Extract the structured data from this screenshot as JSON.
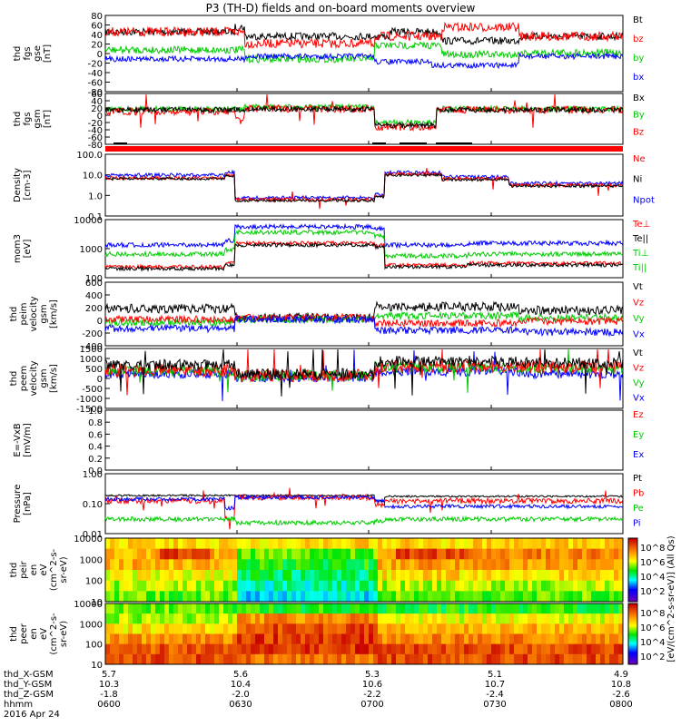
{
  "title": "P3 (TH-D) fields and on-board moments overview",
  "date_label": "2016 Apr 24",
  "colors": {
    "black": "#000000",
    "red": "#ff0000",
    "green": "#00cc00",
    "blue": "#0000ff",
    "bar_red": "#ff0000"
  },
  "chart_data": [
    {
      "type": "line",
      "id": "fgs_gse",
      "ylabel": [
        "thd",
        "fgs",
        "gse",
        "[nT]"
      ],
      "ylim": [
        -80,
        90
      ],
      "ticks": [
        "80",
        "60",
        "40",
        "20",
        "0",
        "-20",
        "-40",
        "-60",
        "-80"
      ],
      "series": [
        {
          "name": "Bt",
          "color": "black"
        },
        {
          "name": "bz",
          "color": "red"
        },
        {
          "name": "by",
          "color": "green"
        },
        {
          "name": "bx",
          "color": "blue"
        }
      ]
    },
    {
      "type": "line",
      "id": "fgs_gsm",
      "ylabel": [
        "thd",
        "fgs",
        "gsm",
        "[nT]"
      ],
      "ylim": [
        -80,
        60
      ],
      "ticks": [
        "60",
        "40",
        "20",
        "0",
        "-20",
        "-40",
        "-60",
        "-80"
      ],
      "series": [
        {
          "name": "Bx",
          "color": "black"
        },
        {
          "name": "By",
          "color": "green"
        },
        {
          "name": "Bz",
          "color": "red"
        }
      ]
    },
    {
      "type": "line",
      "id": "density",
      "ylabel": [
        "Density",
        "[cm-3]"
      ],
      "log": true,
      "ylim": [
        0.1,
        100
      ],
      "ticks": [
        "100.0",
        "10.0",
        "1.0",
        "0.1"
      ],
      "series": [
        {
          "name": "Ne",
          "color": "red"
        },
        {
          "name": "Ni",
          "color": "black"
        },
        {
          "name": "Npot",
          "color": "blue"
        }
      ]
    },
    {
      "type": "line",
      "id": "temp",
      "ylabel": [
        "mom3",
        "[eV]"
      ],
      "log": true,
      "ylim": [
        40,
        10000
      ],
      "ticks": [
        "10000",
        "1000",
        "100"
      ],
      "series": [
        {
          "name": "Te⊥",
          "color": "red"
        },
        {
          "name": "Te||",
          "color": "black"
        },
        {
          "name": "Ti⊥",
          "color": "green"
        },
        {
          "name": "Ti||",
          "color": "green"
        }
      ]
    },
    {
      "type": "line",
      "id": "peim",
      "ylabel": [
        "thd",
        "peim",
        "velocity",
        "gsm",
        "[km/s]"
      ],
      "ylim": [
        -400,
        600
      ],
      "ticks": [
        "600",
        "400",
        "200",
        "0",
        "-200",
        "-400"
      ],
      "series": [
        {
          "name": "Vt",
          "color": "black"
        },
        {
          "name": "Vz",
          "color": "red"
        },
        {
          "name": "Vy",
          "color": "green"
        },
        {
          "name": "Vx",
          "color": "blue"
        }
      ]
    },
    {
      "type": "line",
      "id": "peem",
      "ylabel": [
        "thd",
        "peem",
        "velocity",
        "gsm",
        "[km/s]"
      ],
      "ylim": [
        -1500,
        1500
      ],
      "ticks": [
        "1500",
        "1000",
        "500",
        "0",
        "-500",
        "-1000",
        "-1500"
      ],
      "series": [
        {
          "name": "Vt",
          "color": "black"
        },
        {
          "name": "Vz",
          "color": "red"
        },
        {
          "name": "Vy",
          "color": "green"
        },
        {
          "name": "Vx",
          "color": "blue"
        }
      ]
    },
    {
      "type": "line",
      "id": "efield",
      "ylabel": [
        "E=-VxB",
        "[mV/m]"
      ],
      "ylim": [
        0,
        1
      ],
      "ticks": [
        "1.0",
        "0.8",
        "0.6",
        "0.4",
        "0.2",
        "0.0"
      ],
      "series": [
        {
          "name": "Ez",
          "color": "red"
        },
        {
          "name": "Ey",
          "color": "green"
        },
        {
          "name": "Ex",
          "color": "blue"
        }
      ]
    },
    {
      "type": "line",
      "id": "pressure",
      "ylabel": [
        "Pressure",
        "[nPa]"
      ],
      "log": true,
      "ylim": [
        0.01,
        2
      ],
      "ticks": [
        "1.00",
        "0.10",
        "0.01"
      ],
      "series": [
        {
          "name": "Pt",
          "color": "black"
        },
        {
          "name": "Pb",
          "color": "red"
        },
        {
          "name": "Pe",
          "color": "green"
        },
        {
          "name": "Pi",
          "color": "blue"
        }
      ]
    },
    {
      "type": "heatmap",
      "id": "peir",
      "ylabel": [
        "thd",
        "peir",
        "en",
        "eV",
        "(cm^2-s-",
        "sr-eV)"
      ],
      "ticks": [
        "10000",
        "1000",
        "100",
        "10"
      ]
    },
    {
      "type": "heatmap",
      "id": "peer",
      "ylabel": [
        "thd",
        "peer",
        "en",
        "eV",
        "(cm^2-s-",
        "sr-eV)"
      ],
      "ticks": [
        "10000",
        "1000",
        "100",
        "10"
      ]
    }
  ],
  "colorbar": {
    "label": "[eV/(cm^2-s-sr-eV)] (All Qs)",
    "ticks_top": [
      "10^8",
      "10^6",
      "10^4",
      "10^2"
    ],
    "ticks_bottom": [
      "10^8",
      "10^6",
      "10^4",
      "10^2"
    ]
  },
  "x_axis": {
    "rows": [
      {
        "label": "thd_X-GSM",
        "values": [
          "5.7",
          "5.6",
          "5.3",
          "5.1",
          "4.9"
        ]
      },
      {
        "label": "thd_Y-GSM",
        "values": [
          "10.3",
          "10.4",
          "10.6",
          "10.7",
          "10.8"
        ]
      },
      {
        "label": "thd_Z-GSM",
        "values": [
          "-1.8",
          "-2.0",
          "-2.2",
          "-2.4",
          "-2.6"
        ]
      },
      {
        "label": "hhmm",
        "values": [
          "0600",
          "0630",
          "0700",
          "0730",
          "0800"
        ]
      }
    ]
  }
}
